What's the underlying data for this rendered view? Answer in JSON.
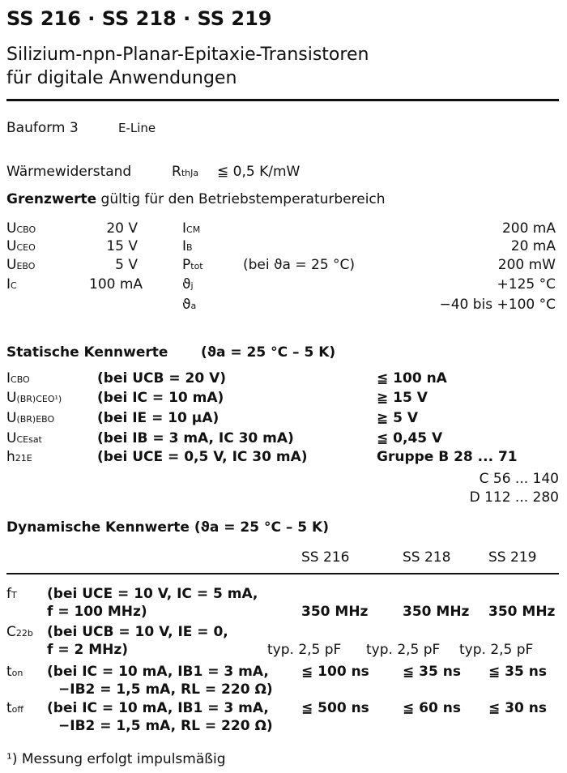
{
  "title": "SS 216 · SS 218 · SS 219",
  "subtitle1": "Silizium-npn-Planar-Epitaxie-Transistoren",
  "subtitle2": "für digitale Anwendungen",
  "bauform": {
    "label": "Bauform 3",
    "value": "E-Line"
  },
  "thermal": {
    "label": "Wärmewiderstand",
    "sym": "R",
    "sub": "thJa",
    "value": "≦ 0,5 K/mW"
  },
  "limits": {
    "heading_bold": "Grenzwerte",
    "heading_rest": "gültig für den Betriebstemperaturbereich",
    "left": [
      {
        "s": "U",
        "sub": "CBO",
        "v": "20 V"
      },
      {
        "s": "U",
        "sub": "CEO",
        "v": "15 V"
      },
      {
        "s": "U",
        "sub": "EBO",
        "v": "5 V"
      },
      {
        "s": "I",
        "sub": "C",
        "v": "100 mA"
      }
    ],
    "right": [
      {
        "s": "I",
        "sub": "CM",
        "cond": "",
        "v": "200 mA"
      },
      {
        "s": "I",
        "sub": "B",
        "cond": "",
        "v": "20 mA"
      },
      {
        "s": "P",
        "sub": "tot",
        "cond": "(bei ϑa = 25 °C)",
        "v": "200 mW"
      },
      {
        "s": "ϑ",
        "sub": "j",
        "cond": "",
        "v": "+125 °C"
      },
      {
        "s": "ϑ",
        "sub": "a",
        "cond": "",
        "v": "−40 bis +100 °C"
      }
    ]
  },
  "static": {
    "heading": "Statische Kennwerte",
    "cond": "(ϑa = 25 °C – 5 K)",
    "rows": [
      {
        "s": "I",
        "sub": "CBO",
        "cond": "(bei UCB = 20 V)",
        "v": "≦ 100 nA"
      },
      {
        "s": "U",
        "sub": "(BR)CEO¹)",
        "cond": "(bei IC = 10 mA)",
        "v": "≧ 15 V"
      },
      {
        "s": "U",
        "sub": "(BR)EBO",
        "cond": "(bei IE = 10 µA)",
        "v": "≧ 5 V"
      },
      {
        "s": "U",
        "sub": "CEsat",
        "cond": "(bei IB = 3 mA, IC 30 mA)",
        "v": "≦ 0,45 V"
      },
      {
        "s": "h",
        "sub": "21E",
        "cond": "(bei UCE = 0,5 V, IC 30 mA)",
        "v": "Gruppe B 28 ... 71"
      }
    ],
    "groups": [
      "C 56 ... 140",
      "D 112 ... 280"
    ]
  },
  "dynamic": {
    "heading": "Dynamische Kennwerte (ϑa = 25 °C – 5 K)",
    "cols": [
      "SS 216",
      "SS 218",
      "SS 219"
    ],
    "rows": [
      {
        "s": "f",
        "sub": "T",
        "l1": "(bei UCE = 10 V, IC = 5 mA,",
        "l2": "f = 100 MHz)",
        "v": [
          "350 MHz",
          "350 MHz",
          "350 MHz"
        ],
        "row": 2
      },
      {
        "s": "C",
        "sub": "22b",
        "l1": "(bei UCB = 10 V, IE = 0,",
        "l2": "f = 2 MHz)",
        "v": [
          "typ. 2,5 pF",
          "typ. 2,5 pF",
          "typ. 2,5 pF"
        ],
        "row": 2
      },
      {
        "s": "t",
        "sub": "on",
        "l1": "(bei IC = 10 mA, IB1 = 3 mA,",
        "l2": "−IB2 = 1,5 mA, RL = 220 Ω)",
        "v": [
          "≦ 100 ns",
          "≦ 35 ns",
          "≦ 35 ns"
        ],
        "row": 1
      },
      {
        "s": "t",
        "sub": "off",
        "l1": "(bei IC = 10 mA, IB1 = 3 mA,",
        "l2": "−IB2 = 1,5 mA, RL = 220 Ω)",
        "v": [
          "≦ 500 ns",
          "≦ 60 ns",
          "≦ 30 ns"
        ],
        "row": 1
      }
    ]
  },
  "footnote": "¹) Messung erfolgt impulsmäßig"
}
